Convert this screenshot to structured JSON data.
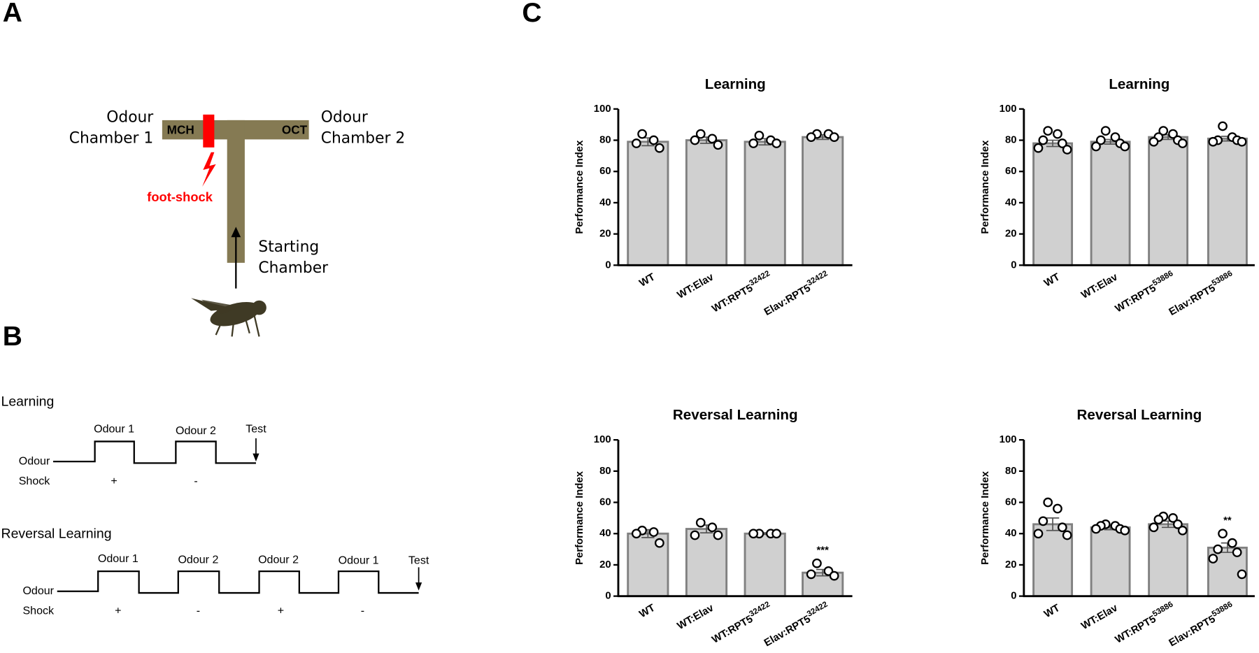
{
  "panel_labels": [
    "A",
    "B",
    "C"
  ],
  "diagram_a": {
    "left_chamber": [
      "Odour",
      "Chamber 1"
    ],
    "right_chamber": [
      "Odour",
      "Chamber 2"
    ],
    "left_odour": "MCH",
    "right_odour": "OCT",
    "shock": "foot-shock",
    "start_chamber": [
      "Starting",
      "Chamber"
    ]
  },
  "diagram_b": {
    "learning": {
      "title": "Learning",
      "odours": [
        "Odour 1",
        "Odour 2"
      ],
      "test": "Test",
      "row_labels": [
        "Odour",
        "Shock"
      ],
      "shock_signs": [
        "+",
        "-"
      ]
    },
    "reversal": {
      "title": "Reversal Learning",
      "odours": [
        "Odour 1",
        "Odour 2",
        "Odour 2",
        "Odour 1"
      ],
      "test": "Test",
      "row_labels": [
        "Odour",
        "Shock"
      ],
      "shock_signs": [
        "+",
        "-",
        "+",
        "-"
      ]
    }
  },
  "chart_data": [
    {
      "type": "bar",
      "title": "Learning",
      "y_label": "Performance Index",
      "categories": [
        "WT",
        "WT:Elav",
        "WT:RPT5",
        "Elav:RPT5"
      ],
      "category_superscripts": [
        null,
        null,
        "32422",
        "32422"
      ],
      "values": [
        79,
        80,
        79,
        82
      ],
      "errors": [
        2.5,
        2,
        2,
        1.5
      ],
      "points": [
        [
          84,
          80,
          78,
          75
        ],
        [
          84,
          81,
          80,
          77
        ],
        [
          83,
          80,
          78,
          78
        ],
        [
          84,
          84,
          82,
          82
        ]
      ],
      "significance": [
        null,
        null,
        null,
        null
      ],
      "color": "#d0d0d0",
      "ylim": [
        0,
        100
      ],
      "yticks": [
        0,
        20,
        40,
        60,
        80,
        100
      ]
    },
    {
      "type": "bar",
      "title": "Learning",
      "y_label": "Performance Index",
      "categories": [
        "WT",
        "WT:Elav",
        "WT:RPT5",
        "Elav:RPT5"
      ],
      "category_superscripts": [
        null,
        null,
        "53886",
        "53886"
      ],
      "values": [
        78,
        79,
        82,
        81
      ],
      "errors": [
        2,
        1.5,
        1.5,
        1.5
      ],
      "points": [
        [
          86,
          84,
          80,
          78,
          75,
          74
        ],
        [
          86,
          82,
          80,
          78,
          76,
          76
        ],
        [
          86,
          84,
          82,
          80,
          79,
          78
        ],
        [
          89,
          82,
          80,
          80,
          79,
          79
        ]
      ],
      "significance": [
        null,
        null,
        null,
        null
      ],
      "color": "#d0d0d0",
      "ylim": [
        0,
        100
      ],
      "yticks": [
        0,
        20,
        40,
        60,
        80,
        100
      ]
    },
    {
      "type": "bar",
      "title": "Reversal Learning",
      "y_label": "Performance Index",
      "categories": [
        "WT",
        "WT:Elav",
        "WT:RPT5",
        "Elav:RPT5"
      ],
      "category_superscripts": [
        null,
        null,
        "32422",
        "32422"
      ],
      "values": [
        40,
        43,
        40,
        15
      ],
      "errors": [
        2.5,
        2.5,
        0.5,
        2
      ],
      "points": [
        [
          42,
          41,
          40,
          34
        ],
        [
          47,
          44,
          39,
          39
        ],
        [
          40,
          40,
          40,
          40
        ],
        [
          21,
          16,
          14,
          13
        ]
      ],
      "significance": [
        null,
        null,
        null,
        "***"
      ],
      "color": "#d0d0d0",
      "ylim": [
        0,
        100
      ],
      "yticks": [
        0,
        20,
        40,
        60,
        80,
        100
      ]
    },
    {
      "type": "bar",
      "title": "Reversal Learning",
      "y_label": "Performance Index",
      "categories": [
        "WT",
        "WT:Elav",
        "WT:RPT5",
        "Elav:RPT5"
      ],
      "category_superscripts": [
        null,
        null,
        "53886",
        "53886"
      ],
      "values": [
        46,
        44,
        46,
        31
      ],
      "errors": [
        4,
        1.5,
        2,
        3
      ],
      "points": [
        [
          60,
          56,
          48,
          44,
          40,
          39
        ],
        [
          46,
          45,
          45,
          43,
          43,
          42
        ],
        [
          51,
          50,
          49,
          46,
          44,
          42
        ],
        [
          40,
          34,
          30,
          28,
          24,
          14
        ]
      ],
      "significance": [
        null,
        null,
        null,
        "**"
      ],
      "color": "#d0d0d0",
      "ylim": [
        0,
        100
      ],
      "yticks": [
        0,
        20,
        40,
        60,
        80,
        100
      ]
    }
  ]
}
